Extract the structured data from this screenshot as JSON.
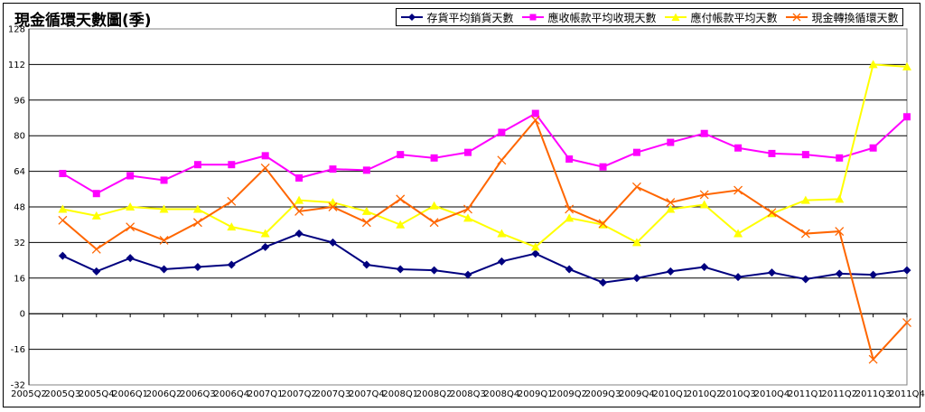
{
  "chart_data": {
    "type": "line",
    "title": "現金循環天數圖(季)",
    "ylim": [
      -32,
      128
    ],
    "yticks": [
      -32,
      -16,
      0,
      16,
      32,
      48,
      64,
      80,
      96,
      112,
      128
    ],
    "grid": true,
    "legend_position": "top-right",
    "categories": [
      "2005Q2",
      "2005Q3",
      "2005Q4",
      "2006Q1",
      "2006Q2",
      "2006Q3",
      "2006Q4",
      "2007Q1",
      "2007Q2",
      "2007Q3",
      "2007Q4",
      "2008Q1",
      "2008Q2",
      "2008Q3",
      "2008Q4",
      "2009Q1",
      "2009Q2",
      "2009Q3",
      "2009Q4",
      "2010Q1",
      "2010Q2",
      "2010Q3",
      "2010Q4",
      "2011Q1",
      "2011Q2",
      "2011Q3",
      "2011Q4"
    ],
    "series": [
      {
        "name": "存貨平均銷貨天數",
        "color": "#00007f",
        "marker": "diamond",
        "values": [
          null,
          26,
          19,
          25,
          20,
          21,
          22,
          30,
          36,
          32,
          22,
          20,
          19.5,
          17.5,
          23.5,
          27,
          20,
          14,
          16,
          19,
          21,
          16.5,
          18.5,
          15.5,
          18,
          17.5,
          19.5
        ]
      },
      {
        "name": "應收帳款平均收現天數",
        "color": "#ff00ff",
        "marker": "square",
        "values": [
          null,
          63,
          54,
          62,
          60,
          67,
          67,
          71,
          61,
          65,
          64.5,
          71.5,
          70,
          72.5,
          81.5,
          90,
          69.5,
          66,
          72.5,
          77,
          81,
          74.5,
          72,
          71.5,
          70,
          74.5,
          88.5
        ]
      },
      {
        "name": "應付帳款平均天數",
        "color": "#ffff00",
        "marker": "triangle",
        "values": [
          null,
          47,
          44,
          48,
          47,
          47,
          39,
          36,
          51,
          50,
          46,
          40,
          48.5,
          43,
          36,
          30,
          43,
          40,
          32,
          47,
          49,
          36,
          45,
          51,
          51.5,
          112,
          111
        ]
      },
      {
        "name": "現金轉換循環天數",
        "color": "#ff6600",
        "marker": "x",
        "values": [
          null,
          42,
          29,
          39,
          33,
          41,
          50.5,
          65.5,
          46,
          48,
          41,
          51.5,
          41,
          47,
          69,
          87,
          47,
          40.5,
          57,
          50,
          53.5,
          55.5,
          45.5,
          36,
          37,
          -20.5,
          -4
        ]
      }
    ]
  }
}
